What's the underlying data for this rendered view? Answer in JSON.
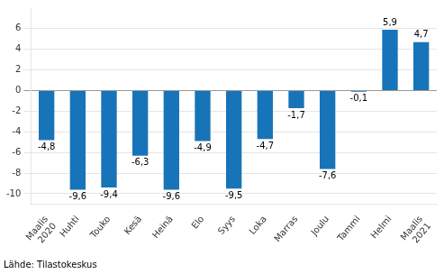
{
  "chart_data": {
    "type": "bar",
    "categories": [
      "Maalis\n2020",
      "Huhti",
      "Touko",
      "Kesä",
      "Heinä",
      "Elo",
      "Syys",
      "Loka",
      "Marras",
      "Joulu",
      "Tammi",
      "Helmi",
      "Maalis\n2021"
    ],
    "values": [
      -4.8,
      -9.6,
      -9.4,
      -6.3,
      -9.6,
      -4.9,
      -9.5,
      -4.7,
      -1.7,
      -7.6,
      -0.1,
      5.9,
      4.7
    ],
    "value_labels": [
      "-4,8",
      "-9,6",
      "-9,4",
      "-6,3",
      "-9,6",
      "-4,9",
      "-9,5",
      "-4,7",
      "-1,7",
      "-7,6",
      "-0,1",
      "5,9",
      "4,7"
    ],
    "data_labels": true,
    "color": "#1874b8",
    "ylim": [
      -11,
      8
    ],
    "yticks": [
      -10,
      -8,
      -6,
      -4,
      -2,
      0,
      2,
      4,
      6
    ],
    "grid": true,
    "annotations": [
      "Lähde: Tilastokeskus"
    ]
  }
}
